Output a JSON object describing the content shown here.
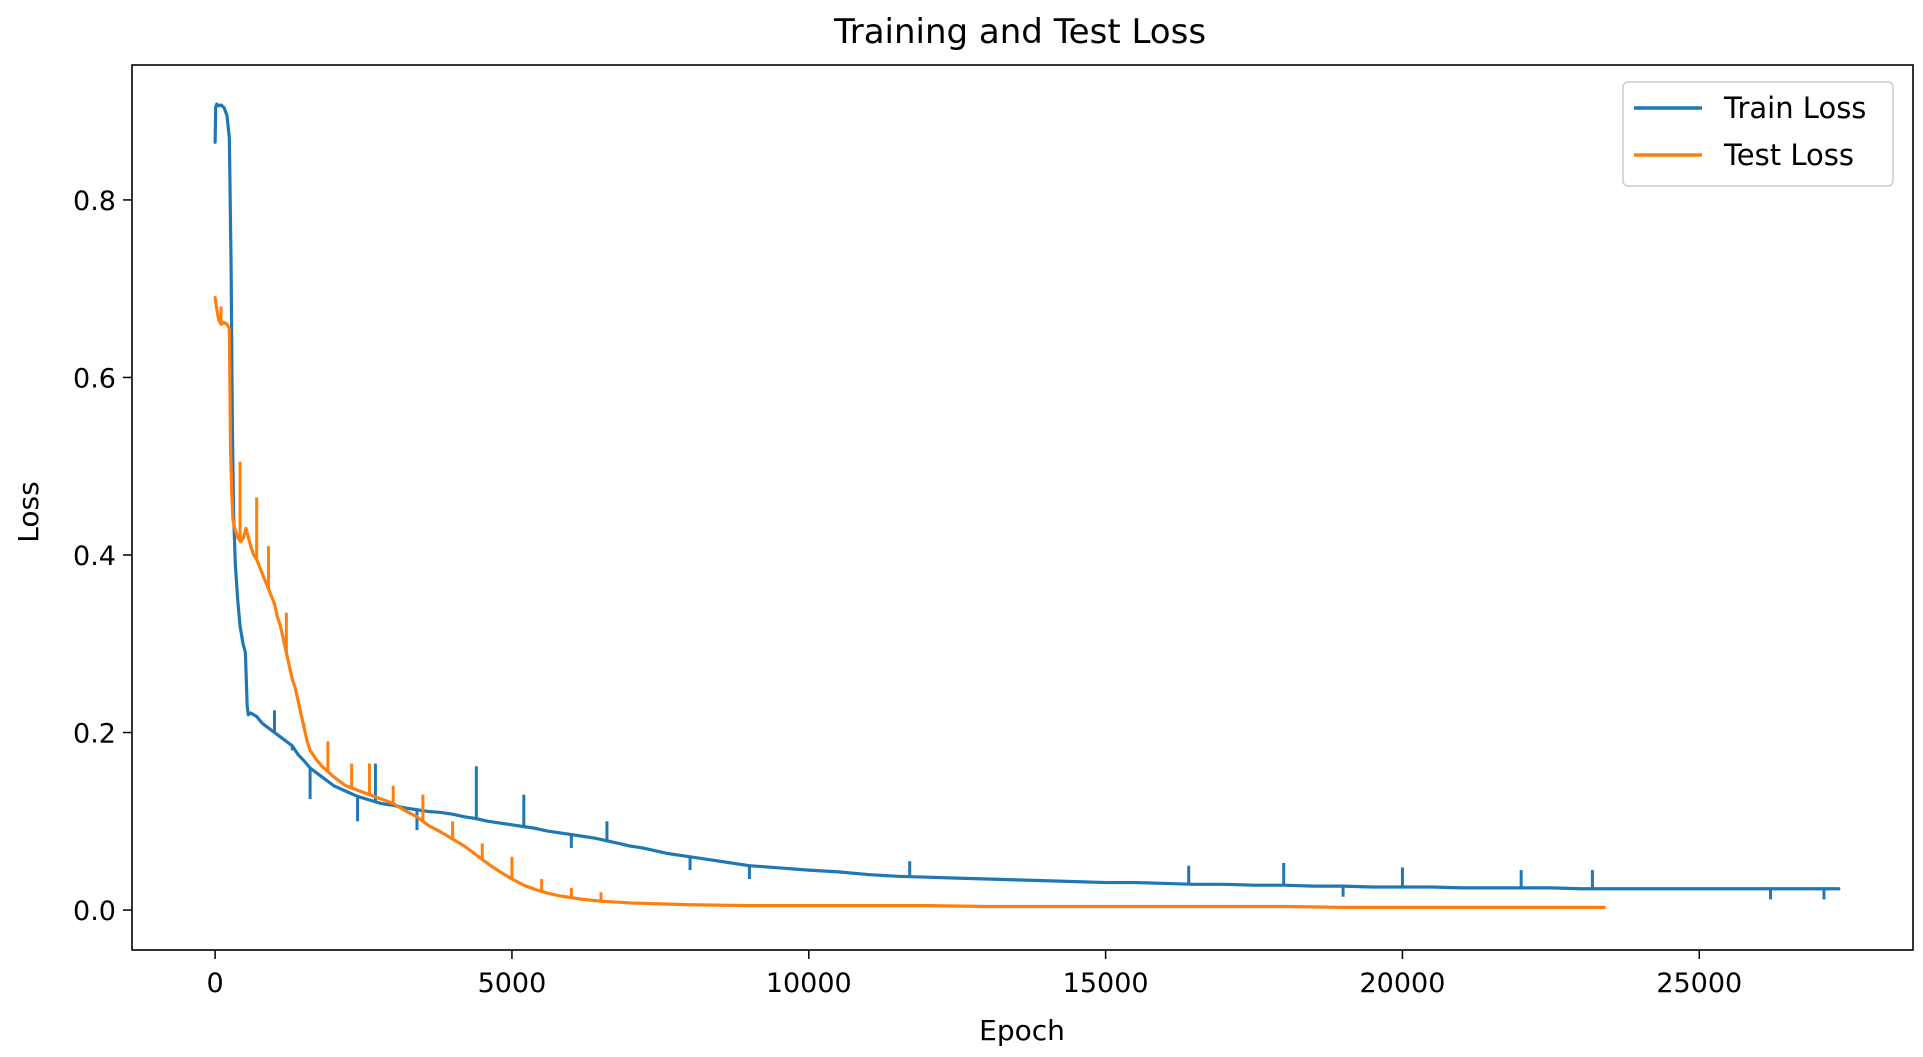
{
  "chart_data": {
    "type": "line",
    "title": "Training and Test Loss",
    "xlabel": "Epoch",
    "ylabel": "Loss",
    "xlim": [
      -1400,
      28600
    ],
    "ylim": [
      -0.045,
      0.952
    ],
    "xticks": [
      0,
      5000,
      10000,
      15000,
      20000,
      25000
    ],
    "xtick_labels": [
      "0",
      "5000",
      "10000",
      "15000",
      "20000",
      "25000"
    ],
    "yticks": [
      0.0,
      0.2,
      0.4,
      0.6,
      0.8
    ],
    "ytick_labels": [
      "0.0",
      "0.2",
      "0.4",
      "0.6",
      "0.8"
    ],
    "grid": false,
    "legend_position": "top-right",
    "series": [
      {
        "name": "Train Loss",
        "color": "#1f77b4",
        "x": [
          0,
          10,
          30,
          60,
          100,
          150,
          200,
          240,
          270,
          290,
          310,
          340,
          380,
          420,
          470,
          510,
          540,
          560,
          600,
          700,
          800,
          900,
          1000,
          1100,
          1200,
          1300,
          1400,
          1500,
          1600,
          1800,
          2000,
          2200,
          2400,
          2600,
          2800,
          3000,
          3200,
          3400,
          3600,
          3800,
          4000,
          4200,
          4400,
          4600,
          4800,
          5000,
          5200,
          5400,
          5600,
          5800,
          6000,
          6200,
          6400,
          6600,
          6800,
          7000,
          7200,
          7400,
          7600,
          7800,
          8000,
          8200,
          8400,
          8600,
          8800,
          9000,
          9200,
          9400,
          9600,
          9800,
          10000,
          10500,
          11000,
          11500,
          12000,
          12500,
          13000,
          13500,
          14000,
          14500,
          15000,
          15500,
          16000,
          16500,
          17000,
          17500,
          18000,
          18500,
          19000,
          19500,
          20000,
          20500,
          21000,
          21500,
          22000,
          22500,
          23000,
          23500,
          24000,
          24500,
          25000,
          25500,
          26000,
          26500,
          27000,
          27350
        ],
        "y": [
          0.865,
          0.905,
          0.908,
          0.906,
          0.907,
          0.904,
          0.895,
          0.87,
          0.72,
          0.55,
          0.45,
          0.39,
          0.35,
          0.32,
          0.3,
          0.29,
          0.23,
          0.22,
          0.222,
          0.218,
          0.21,
          0.205,
          0.2,
          0.195,
          0.19,
          0.185,
          0.175,
          0.168,
          0.16,
          0.15,
          0.14,
          0.134,
          0.128,
          0.124,
          0.12,
          0.118,
          0.115,
          0.113,
          0.111,
          0.11,
          0.108,
          0.105,
          0.103,
          0.1,
          0.098,
          0.096,
          0.094,
          0.092,
          0.089,
          0.087,
          0.085,
          0.083,
          0.081,
          0.078,
          0.075,
          0.072,
          0.07,
          0.067,
          0.064,
          0.062,
          0.06,
          0.058,
          0.056,
          0.054,
          0.052,
          0.05,
          0.049,
          0.048,
          0.047,
          0.046,
          0.045,
          0.043,
          0.04,
          0.038,
          0.037,
          0.036,
          0.035,
          0.034,
          0.033,
          0.032,
          0.031,
          0.031,
          0.03,
          0.029,
          0.029,
          0.028,
          0.028,
          0.027,
          0.027,
          0.026,
          0.026,
          0.026,
          0.025,
          0.025,
          0.025,
          0.025,
          0.024,
          0.024,
          0.024,
          0.024,
          0.024,
          0.024,
          0.024,
          0.024,
          0.024,
          0.024
        ],
        "spikes": [
          [
            1000,
            0.225
          ],
          [
            1300,
            0.18
          ],
          [
            1600,
            0.125
          ],
          [
            2400,
            0.1
          ],
          [
            2700,
            0.165
          ],
          [
            3400,
            0.09
          ],
          [
            4400,
            0.162
          ],
          [
            5200,
            0.13
          ],
          [
            6000,
            0.07
          ],
          [
            6600,
            0.1
          ],
          [
            8000,
            0.045
          ],
          [
            9000,
            0.035
          ],
          [
            11700,
            0.055
          ],
          [
            16400,
            0.05
          ],
          [
            18000,
            0.053
          ],
          [
            19000,
            0.015
          ],
          [
            20000,
            0.048
          ],
          [
            22000,
            0.045
          ],
          [
            23200,
            0.045
          ],
          [
            26200,
            0.012
          ],
          [
            27100,
            0.012
          ]
        ]
      },
      {
        "name": "Test Loss",
        "color": "#ff7f0e",
        "x": [
          0,
          20,
          60,
          100,
          150,
          200,
          240,
          260,
          280,
          300,
          330,
          380,
          430,
          480,
          520,
          560,
          600,
          650,
          700,
          760,
          820,
          880,
          940,
          1000,
          1050,
          1100,
          1150,
          1200,
          1250,
          1300,
          1350,
          1400,
          1450,
          1500,
          1550,
          1600,
          1700,
          1800,
          1900,
          2000,
          2200,
          2400,
          2600,
          2800,
          3000,
          3200,
          3400,
          3600,
          3800,
          4000,
          4200,
          4400,
          4600,
          4800,
          5000,
          5200,
          5400,
          5600,
          5800,
          6000,
          6200,
          6500,
          7000,
          7500,
          8000,
          9000,
          10000,
          11000,
          12000,
          13000,
          14000,
          15000,
          16000,
          17000,
          18000,
          19000,
          20000,
          21000,
          22000,
          23000,
          23400
        ],
        "y": [
          0.69,
          0.68,
          0.665,
          0.66,
          0.662,
          0.66,
          0.655,
          0.52,
          0.47,
          0.44,
          0.43,
          0.42,
          0.415,
          0.42,
          0.43,
          0.42,
          0.41,
          0.4,
          0.395,
          0.385,
          0.375,
          0.365,
          0.355,
          0.345,
          0.33,
          0.32,
          0.305,
          0.29,
          0.275,
          0.26,
          0.25,
          0.235,
          0.22,
          0.205,
          0.19,
          0.18,
          0.17,
          0.162,
          0.156,
          0.15,
          0.14,
          0.135,
          0.13,
          0.125,
          0.12,
          0.112,
          0.105,
          0.095,
          0.088,
          0.08,
          0.072,
          0.062,
          0.052,
          0.043,
          0.035,
          0.028,
          0.023,
          0.019,
          0.016,
          0.014,
          0.012,
          0.01,
          0.008,
          0.007,
          0.006,
          0.005,
          0.005,
          0.005,
          0.005,
          0.004,
          0.004,
          0.004,
          0.004,
          0.004,
          0.004,
          0.003,
          0.003,
          0.003,
          0.003,
          0.003,
          0.003
        ],
        "spikes": [
          [
            100,
            0.68
          ],
          [
            420,
            0.505
          ],
          [
            700,
            0.465
          ],
          [
            900,
            0.41
          ],
          [
            1200,
            0.335
          ],
          [
            1500,
            0.21
          ],
          [
            1900,
            0.19
          ],
          [
            2300,
            0.165
          ],
          [
            2600,
            0.165
          ],
          [
            3000,
            0.14
          ],
          [
            3500,
            0.13
          ],
          [
            4000,
            0.1
          ],
          [
            4500,
            0.075
          ],
          [
            5000,
            0.06
          ],
          [
            5500,
            0.035
          ],
          [
            6000,
            0.025
          ],
          [
            6500,
            0.02
          ]
        ]
      }
    ]
  }
}
